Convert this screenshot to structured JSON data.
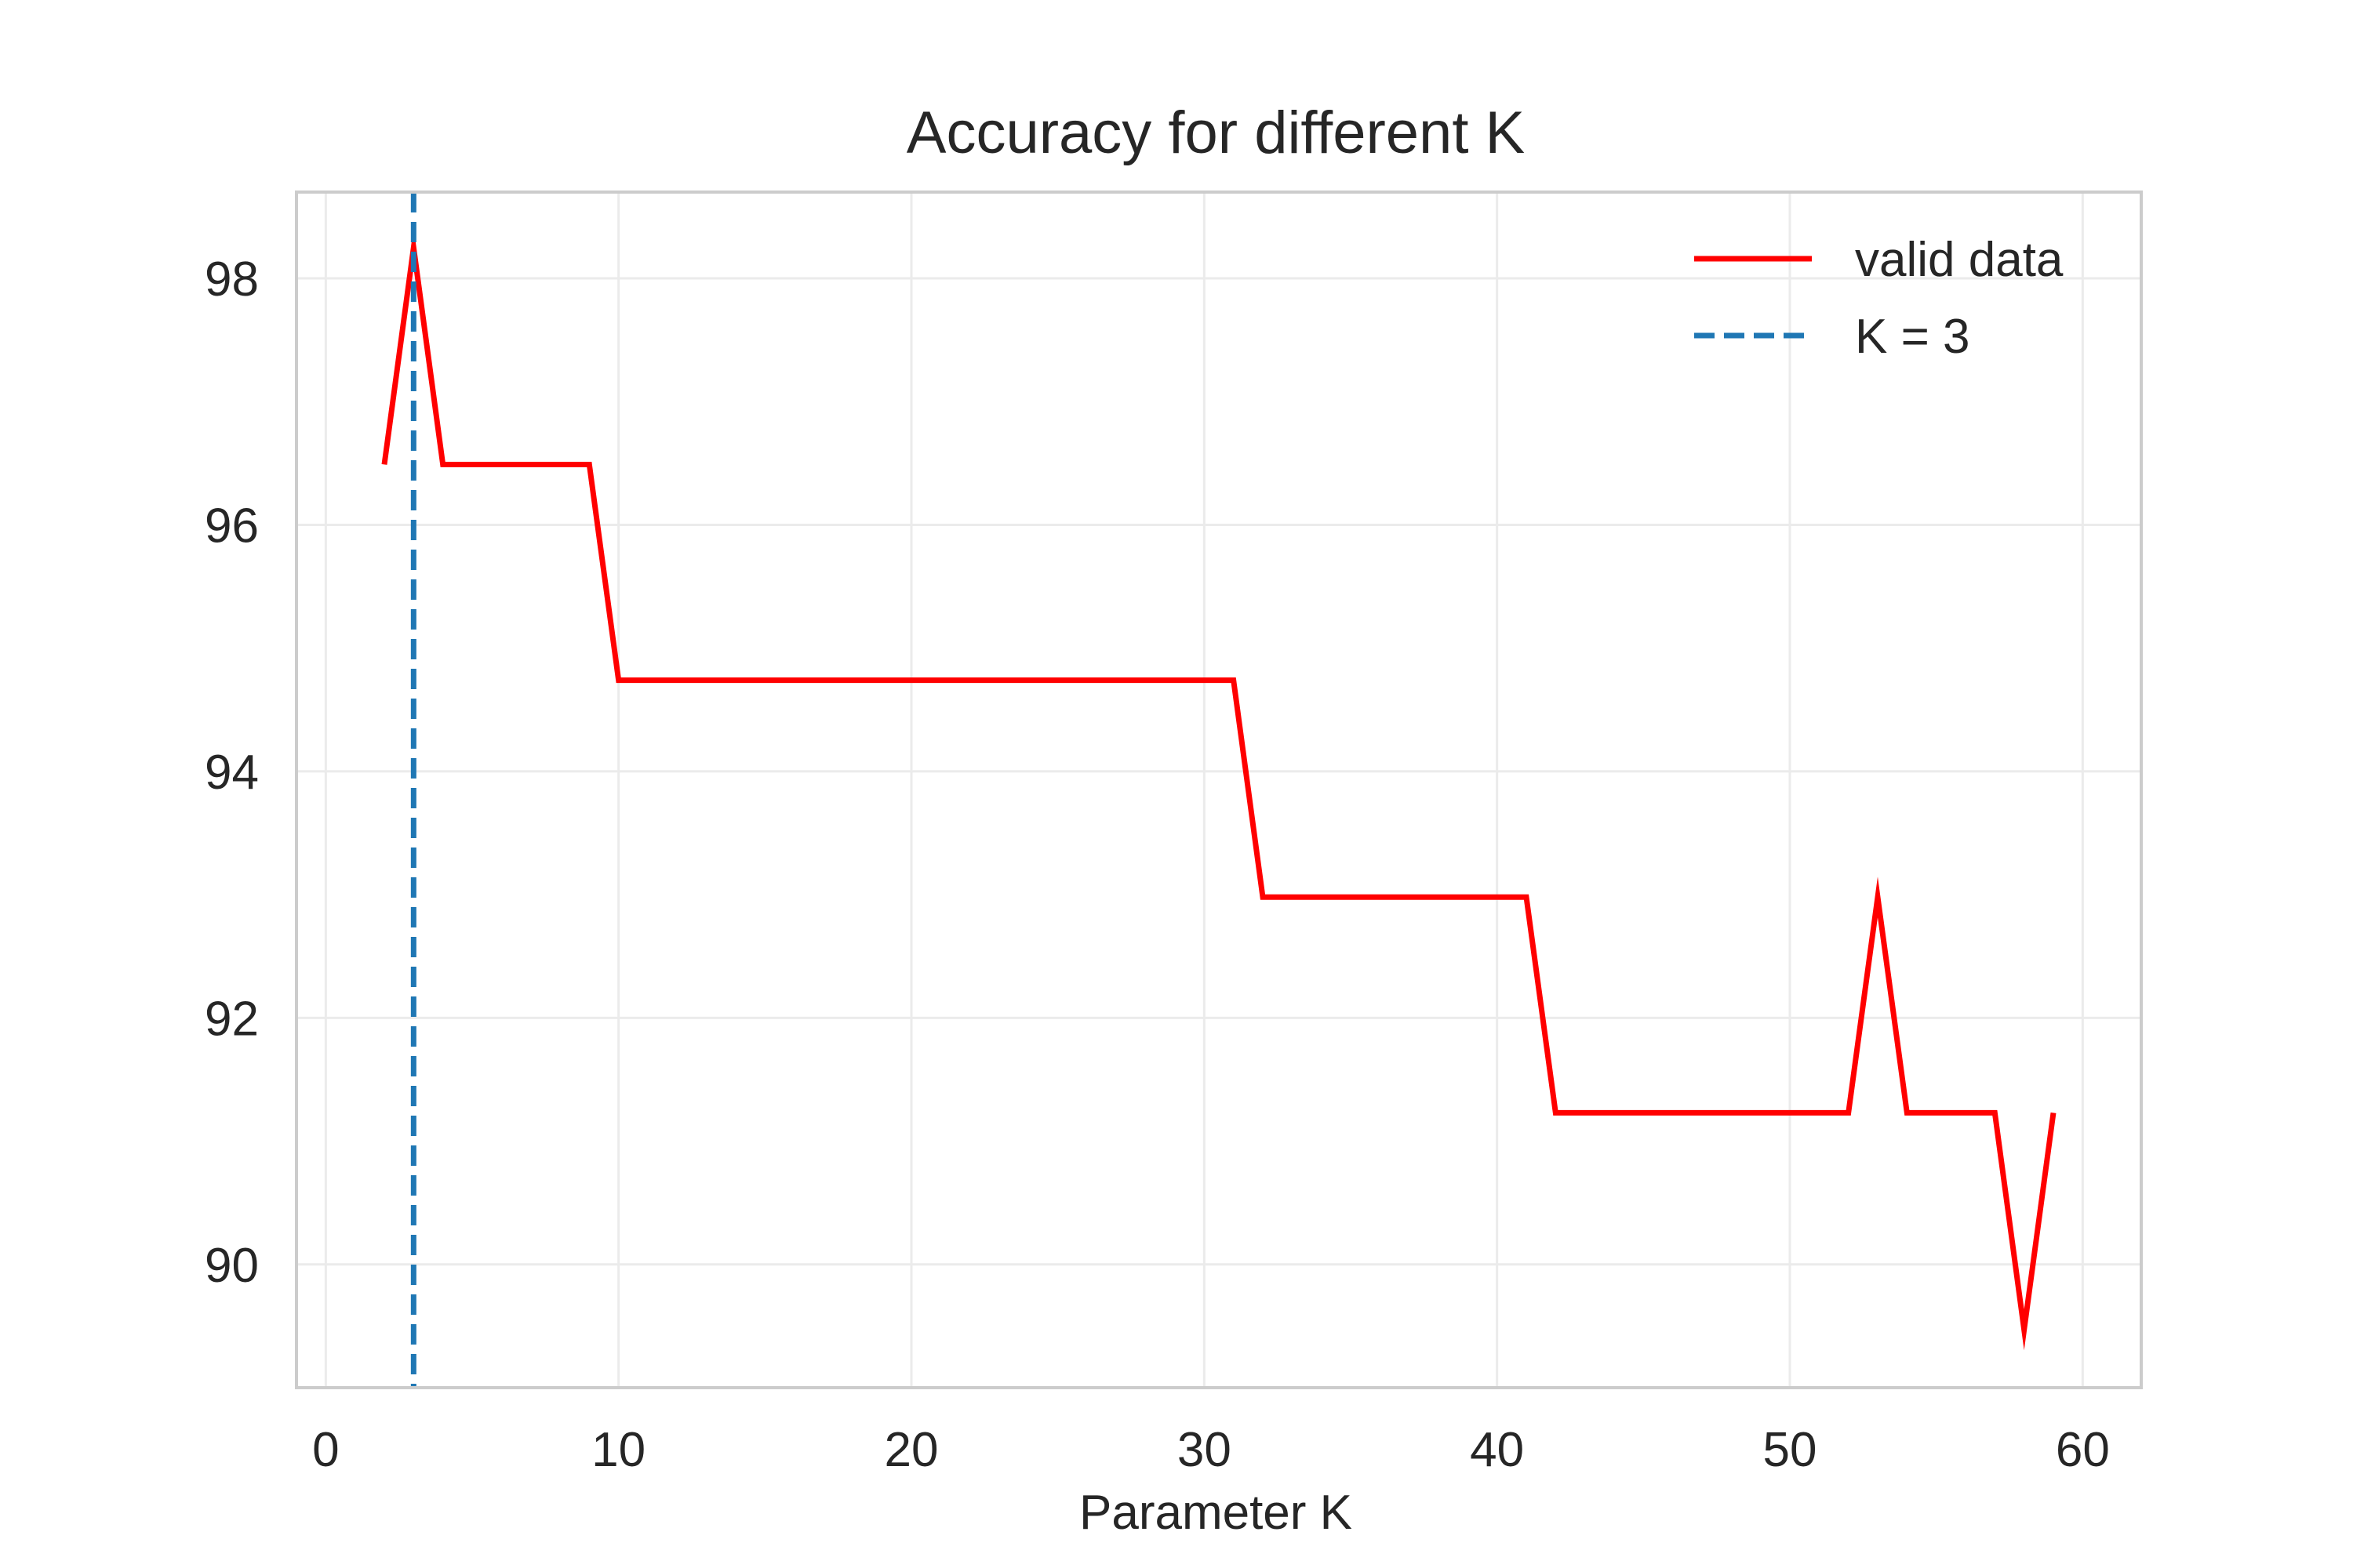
{
  "chart_data": {
    "type": "line",
    "title": "Accuracy for different K",
    "xlabel": "Parameter K",
    "ylabel": "",
    "xlim": [
      -1,
      62
    ],
    "ylim": [
      89.0,
      98.7
    ],
    "xticks": [
      0,
      10,
      20,
      30,
      40,
      50,
      60
    ],
    "yticks": [
      90,
      92,
      94,
      96,
      98
    ],
    "grid": true,
    "legend_position": "top-right",
    "series": [
      {
        "name": "valid data",
        "color": "#ff0000",
        "style": "solid",
        "x": [
          2,
          3,
          4,
          5,
          6,
          7,
          8,
          9,
          10,
          11,
          12,
          13,
          14,
          15,
          16,
          17,
          18,
          19,
          20,
          21,
          22,
          23,
          24,
          25,
          26,
          27,
          28,
          29,
          30,
          31,
          32,
          33,
          34,
          35,
          36,
          37,
          38,
          39,
          40,
          41,
          42,
          43,
          44,
          45,
          46,
          47,
          48,
          49,
          50,
          51,
          52,
          53,
          54,
          55,
          56,
          57,
          58,
          59
        ],
        "y": [
          96.49,
          98.25,
          96.49,
          96.49,
          96.49,
          96.49,
          96.49,
          96.49,
          94.74,
          94.74,
          94.74,
          94.74,
          94.74,
          94.74,
          94.74,
          94.74,
          94.74,
          94.74,
          94.74,
          94.74,
          94.74,
          94.74,
          94.74,
          94.74,
          94.74,
          94.74,
          94.74,
          94.74,
          94.74,
          94.74,
          92.98,
          92.98,
          92.98,
          92.98,
          92.98,
          92.98,
          92.98,
          92.98,
          92.98,
          92.98,
          91.23,
          91.23,
          91.23,
          91.23,
          91.23,
          91.23,
          91.23,
          91.23,
          91.23,
          91.23,
          91.23,
          92.98,
          91.23,
          91.23,
          91.23,
          91.23,
          89.47,
          91.23
        ]
      }
    ],
    "vlines": [
      {
        "name": "K = 3",
        "x": 3,
        "color": "#1f77b4",
        "style": "dashed"
      }
    ]
  }
}
